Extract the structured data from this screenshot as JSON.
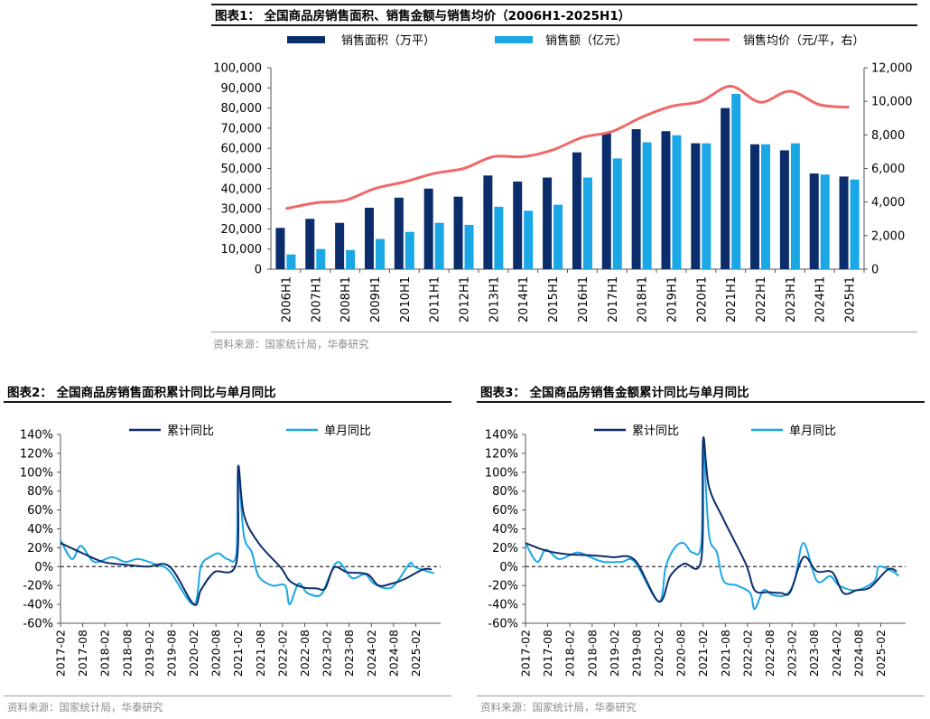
{
  "fig1": {
    "title": "图表1：  全国商品房销售面积、销售金额与销售均价（2006H1-2025H1）",
    "source": "资料来源：国家统计局，华泰研究"
  },
  "fig2": {
    "title": "图表2：    全国商品房销售面积累计同比与单月同比",
    "source": "资料来源：国家统计局，华泰研究"
  },
  "fig3": {
    "title": "图表3：    全国商品房销售金额累计同比与单月同比",
    "source": "资料来源：国家统计局，华泰研究"
  },
  "colors": {
    "dark_blue": "#0c2d6b",
    "light_blue": "#1aa7e6",
    "red_line": "#f06868"
  },
  "chart_data": [
    {
      "type": "bar",
      "categories": [
        "2006H1",
        "2007H1",
        "2008H1",
        "2009H1",
        "2010H1",
        "2011H1",
        "2012H1",
        "2013H1",
        "2014H1",
        "2015H1",
        "2016H1",
        "2017H1",
        "2018H1",
        "2019H1",
        "2020H1",
        "2021H1",
        "2022H1",
        "2023H1",
        "2024H1",
        "2025H1"
      ],
      "series": [
        {
          "name": "销售面积（万平）",
          "axis": "left",
          "type": "bar",
          "color": "#0c2d6b",
          "values": [
            20500,
            25000,
            23000,
            30500,
            35500,
            40000,
            36000,
            46500,
            43500,
            45500,
            58000,
            67500,
            69500,
            68500,
            62500,
            80000,
            62000,
            59000,
            47500,
            46000
          ]
        },
        {
          "name": "销售额（亿元）",
          "axis": "left",
          "type": "bar",
          "color": "#1aa7e6",
          "values": [
            7300,
            10000,
            9500,
            15000,
            18500,
            23000,
            22000,
            31000,
            29000,
            32000,
            45500,
            55000,
            63000,
            66500,
            62500,
            87000,
            62000,
            62500,
            47000,
            44500
          ]
        },
        {
          "name": "销售均价（元/平，右）",
          "axis": "right",
          "type": "line",
          "color": "#f06868",
          "values": [
            3600,
            3950,
            4100,
            4800,
            5200,
            5700,
            6000,
            6700,
            6700,
            7100,
            7850,
            8200,
            9050,
            9700,
            10000,
            10900,
            9950,
            10600,
            9800,
            9650
          ]
        }
      ],
      "ylim_left": [
        0,
        100000
      ],
      "yticks_left": [
        "0",
        "10,000",
        "20,000",
        "30,000",
        "40,000",
        "50,000",
        "60,000",
        "70,000",
        "80,000",
        "90,000",
        "100,000"
      ],
      "ylim_right": [
        0,
        12000
      ],
      "yticks_right": [
        "0",
        "2,000",
        "4,000",
        "6,000",
        "8,000",
        "10,000",
        "12,000"
      ],
      "legend": "top",
      "grid": false
    },
    {
      "type": "line",
      "xticks": [
        "2017-02",
        "2017-08",
        "2018-02",
        "2018-08",
        "2019-02",
        "2019-08",
        "2020-02",
        "2020-08",
        "2021-02",
        "2021-08",
        "2022-02",
        "2022-08",
        "2023-02",
        "2023-08",
        "2024-02",
        "2024-08",
        "2025-02"
      ],
      "yticks": [
        "-60%",
        "-40%",
        "-20%",
        "0%",
        "20%",
        "40%",
        "60%",
        "80%",
        "100%",
        "120%",
        "140%"
      ],
      "ylim": [
        -60,
        140
      ],
      "reference_line": 0,
      "legend": "top",
      "series": [
        {
          "name": "累计同比",
          "color": "#0c2d6b",
          "x": [
            2017.04,
            2017.5,
            2018.0,
            2018.5,
            2019.0,
            2019.5,
            2020.04,
            2020.2,
            2020.5,
            2021.0,
            2021.04,
            2021.17,
            2021.5,
            2022.0,
            2022.2,
            2022.5,
            2022.8,
            2023.0,
            2023.2,
            2023.5,
            2023.95,
            2024.2,
            2024.5,
            2024.8,
            2025.2,
            2025.4
          ],
          "values": [
            25,
            15,
            5,
            2,
            0,
            0,
            -40,
            -25,
            -6,
            4,
            106,
            55,
            25,
            -1,
            -15,
            -22,
            -23,
            -23,
            -1,
            -6,
            -8,
            -20,
            -18,
            -13,
            -3,
            -3
          ]
        },
        {
          "name": "单月同比",
          "color": "#1aa7e6",
          "x": [
            2017.04,
            2017.3,
            2017.5,
            2017.8,
            2018.2,
            2018.5,
            2018.8,
            2019.2,
            2019.5,
            2020.04,
            2020.2,
            2020.4,
            2020.6,
            2020.8,
            2021.0,
            2021.04,
            2021.17,
            2021.35,
            2021.5,
            2021.8,
            2022.1,
            2022.2,
            2022.4,
            2022.6,
            2022.9,
            2023.1,
            2023.3,
            2023.6,
            2023.9,
            2024.1,
            2024.5,
            2024.9,
            2025.0,
            2025.3,
            2025.45
          ],
          "values": [
            28,
            8,
            22,
            5,
            10,
            5,
            8,
            2,
            -5,
            -40,
            0,
            10,
            14,
            8,
            14,
            100,
            33,
            15,
            -10,
            -20,
            -20,
            -40,
            -18,
            -28,
            -30,
            -10,
            5,
            -12,
            -8,
            -18,
            -22,
            3,
            0,
            -5,
            -7
          ]
        }
      ]
    },
    {
      "type": "line",
      "xticks": [
        "2017-02",
        "2017-08",
        "2018-02",
        "2018-08",
        "2019-02",
        "2019-08",
        "2020-02",
        "2020-08",
        "2021-02",
        "2021-08",
        "2022-02",
        "2022-08",
        "2023-02",
        "2023-08",
        "2024-02",
        "2024-08",
        "2025-02"
      ],
      "yticks": [
        "-60%",
        "-40%",
        "-20%",
        "0%",
        "20%",
        "40%",
        "60%",
        "80%",
        "100%",
        "120%",
        "140%"
      ],
      "ylim": [
        -60,
        140
      ],
      "reference_line": 0,
      "legend": "top",
      "series": [
        {
          "name": "累计同比",
          "color": "#0c2d6b",
          "x": [
            2017.04,
            2017.5,
            2018.0,
            2018.5,
            2019.0,
            2019.5,
            2020.04,
            2020.3,
            2020.6,
            2021.0,
            2021.04,
            2021.17,
            2021.5,
            2022.0,
            2022.2,
            2022.5,
            2022.8,
            2023.0,
            2023.3,
            2023.6,
            2023.95,
            2024.2,
            2024.5,
            2024.8,
            2025.2,
            2025.4
          ],
          "values": [
            25,
            17,
            13,
            12,
            10,
            7,
            -37,
            -10,
            3,
            8,
            135,
            85,
            50,
            3,
            -25,
            -27,
            -28,
            -27,
            10,
            -5,
            -6,
            -28,
            -25,
            -22,
            -3,
            -5
          ]
        },
        {
          "name": "单月同比",
          "color": "#1aa7e6",
          "x": [
            2017.04,
            2017.3,
            2017.5,
            2017.8,
            2018.2,
            2018.5,
            2018.8,
            2019.2,
            2019.5,
            2020.04,
            2020.2,
            2020.4,
            2020.6,
            2020.8,
            2021.0,
            2021.04,
            2021.17,
            2021.35,
            2021.5,
            2021.8,
            2022.1,
            2022.2,
            2022.4,
            2022.6,
            2022.9,
            2023.1,
            2023.3,
            2023.6,
            2023.9,
            2024.1,
            2024.5,
            2024.9,
            2025.0,
            2025.3,
            2025.45
          ],
          "values": [
            25,
            5,
            18,
            8,
            15,
            10,
            5,
            5,
            5,
            -37,
            0,
            20,
            25,
            15,
            25,
            130,
            35,
            15,
            -15,
            -20,
            -28,
            -45,
            -25,
            -30,
            -30,
            -15,
            25,
            -15,
            -10,
            -20,
            -25,
            -15,
            0,
            -5,
            -10
          ]
        }
      ]
    }
  ]
}
